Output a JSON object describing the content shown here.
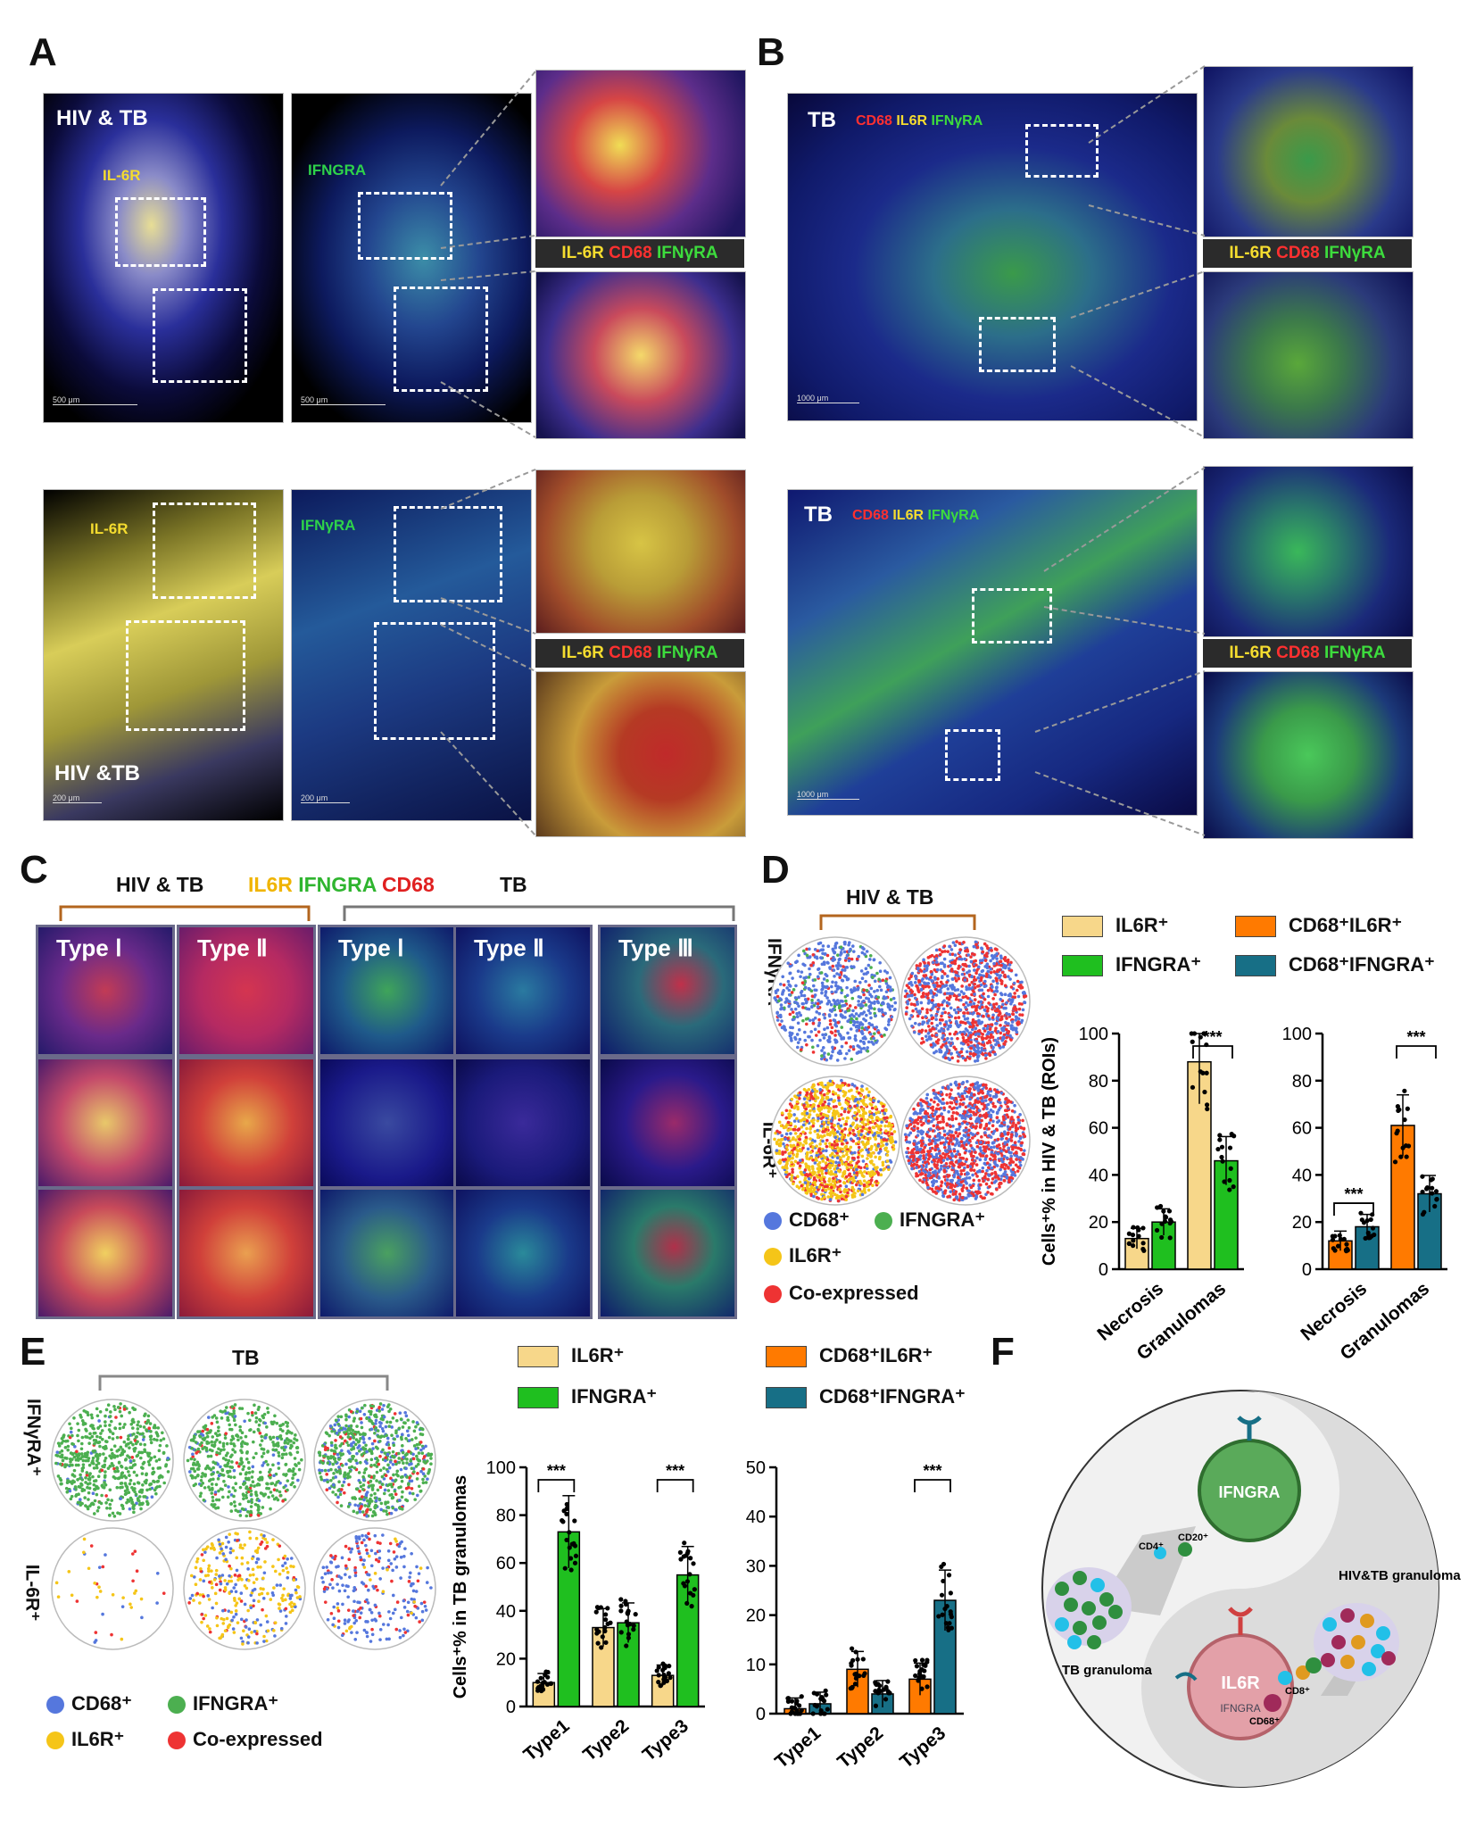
{
  "panels": {
    "A": "A",
    "B": "B",
    "C": "C",
    "D": "D",
    "E": "E",
    "F": "F"
  },
  "colors": {
    "il6r": "#f7d78a",
    "ifngra": "#1fbf1f",
    "cd68il6r": "#ff7a00",
    "cd68ifngra": "#176f86",
    "dot_cd68": "#5577dd",
    "dot_ifngra": "#4caf50",
    "dot_il6r": "#f5c518",
    "dot_co": "#ee3333"
  },
  "panelA": {
    "top_left_title": "HIV & TB",
    "top_left_label": "IL-6R",
    "top_mid_label": "IFNGRA",
    "merge_label_parts": [
      "IL-6R ",
      "CD68 ",
      "IFNγRA"
    ],
    "bottom_left_label": "IL-6R",
    "bottom_left_title": "HIV &TB",
    "bottom_mid_label": "IFNγRA",
    "scale_500": "500 μm",
    "scale_200": "200 μm"
  },
  "panelB": {
    "top_title": "TB",
    "top_stain_parts": [
      "CD68 ",
      "IL6R ",
      "IFNγRA"
    ],
    "bottom_title": "TB",
    "bottom_stain_parts": [
      "CD68 ",
      "IL6R ",
      "IFNγRA"
    ],
    "merge_label_parts": [
      "IL-6R ",
      "CD68 ",
      "IFNγRA"
    ],
    "scale_1000": "1000 μm"
  },
  "panelC": {
    "group1": "HIV & TB",
    "group2": "TB",
    "stain_parts": [
      "IL6R ",
      "IFNGRA ",
      "CD68"
    ],
    "types": [
      "Type Ⅰ",
      "Type Ⅱ",
      "Type Ⅰ",
      "Type Ⅱ",
      "Type Ⅲ"
    ]
  },
  "panelD": {
    "group": "HIV & TB",
    "row1": "IFNγRA⁺",
    "row2": "IL-6R⁺",
    "dot_legend": [
      "CD68⁺",
      "IFNGRA⁺",
      "IL6R⁺",
      "Co-expressed"
    ],
    "bar_legend": [
      "IL6R⁺",
      "CD68⁺IL6R⁺",
      "IFNGRA⁺",
      "CD68⁺IFNGRA⁺"
    ]
  },
  "panelE": {
    "group": "TB",
    "row1": "IFNγRA⁺",
    "row2": "IL-6R⁺",
    "dot_legend": [
      "CD68⁺",
      "IFNGRA⁺",
      "IL6R⁺",
      "Co-expressed"
    ],
    "bar_legend": [
      "IL6R⁺",
      "CD68⁺IL6R⁺",
      "IFNGRA⁺",
      "CD68⁺IFNGRA⁺"
    ]
  },
  "panelF": {
    "ifngra_top": "IFNGRA",
    "il6r": "IL6R",
    "ifngra_bottom": "IFNGRA",
    "hivtb": "HIV&TB\ngranuloma",
    "tb": "TB\ngranuloma",
    "cd4": "CD4⁺",
    "cd20": "CD20⁺",
    "cd8": "CD8⁺",
    "cd68": "CD68⁺"
  },
  "chart_data": [
    {
      "type": "bar",
      "panel": "D-left",
      "ylabel": "Cells⁺% in HIV & TB (ROIs)",
      "ylim": [
        0,
        100
      ],
      "yticks": [
        "0",
        "20",
        "40",
        "60",
        "80",
        "100"
      ],
      "categories": [
        "Necrosis",
        "Granulomas"
      ],
      "series": [
        {
          "name": "IL6R⁺",
          "values": [
            13,
            88
          ]
        },
        {
          "name": "IFNGRA⁺",
          "values": [
            20,
            46
          ]
        }
      ],
      "annotations": [
        "***"
      ]
    },
    {
      "type": "bar",
      "panel": "D-right",
      "ylim": [
        0,
        100
      ],
      "yticks": [
        "0",
        "20",
        "40",
        "60",
        "80",
        "100"
      ],
      "categories": [
        "Necrosis",
        "Granulomas"
      ],
      "series": [
        {
          "name": "CD68⁺IL6R⁺",
          "values": [
            12,
            61
          ]
        },
        {
          "name": "CD68⁺IFNGRA⁺",
          "values": [
            18,
            32
          ]
        }
      ],
      "annotations": [
        "***",
        "***"
      ]
    },
    {
      "type": "bar",
      "panel": "E-left",
      "ylabel": "Cells⁺% in TB granulomas",
      "ylim": [
        0,
        100
      ],
      "yticks": [
        "0",
        "20",
        "40",
        "60",
        "80",
        "100"
      ],
      "categories": [
        "Type1",
        "Type2",
        "Type3"
      ],
      "series": [
        {
          "name": "IL6R⁺",
          "values": [
            10,
            33,
            13
          ]
        },
        {
          "name": "IFNGRA⁺",
          "values": [
            73,
            35,
            55
          ]
        }
      ],
      "annotations": [
        "***",
        "***"
      ]
    },
    {
      "type": "bar",
      "panel": "E-right",
      "ylim": [
        0,
        50
      ],
      "yticks": [
        "0",
        "10",
        "20",
        "30",
        "40",
        "50"
      ],
      "categories": [
        "Type1",
        "Type2",
        "Type3"
      ],
      "series": [
        {
          "name": "CD68⁺IL6R⁺",
          "values": [
            1,
            9,
            7
          ]
        },
        {
          "name": "CD68⁺IFNGRA⁺",
          "values": [
            2,
            4,
            23
          ]
        }
      ],
      "annotations": [
        "***"
      ]
    }
  ]
}
